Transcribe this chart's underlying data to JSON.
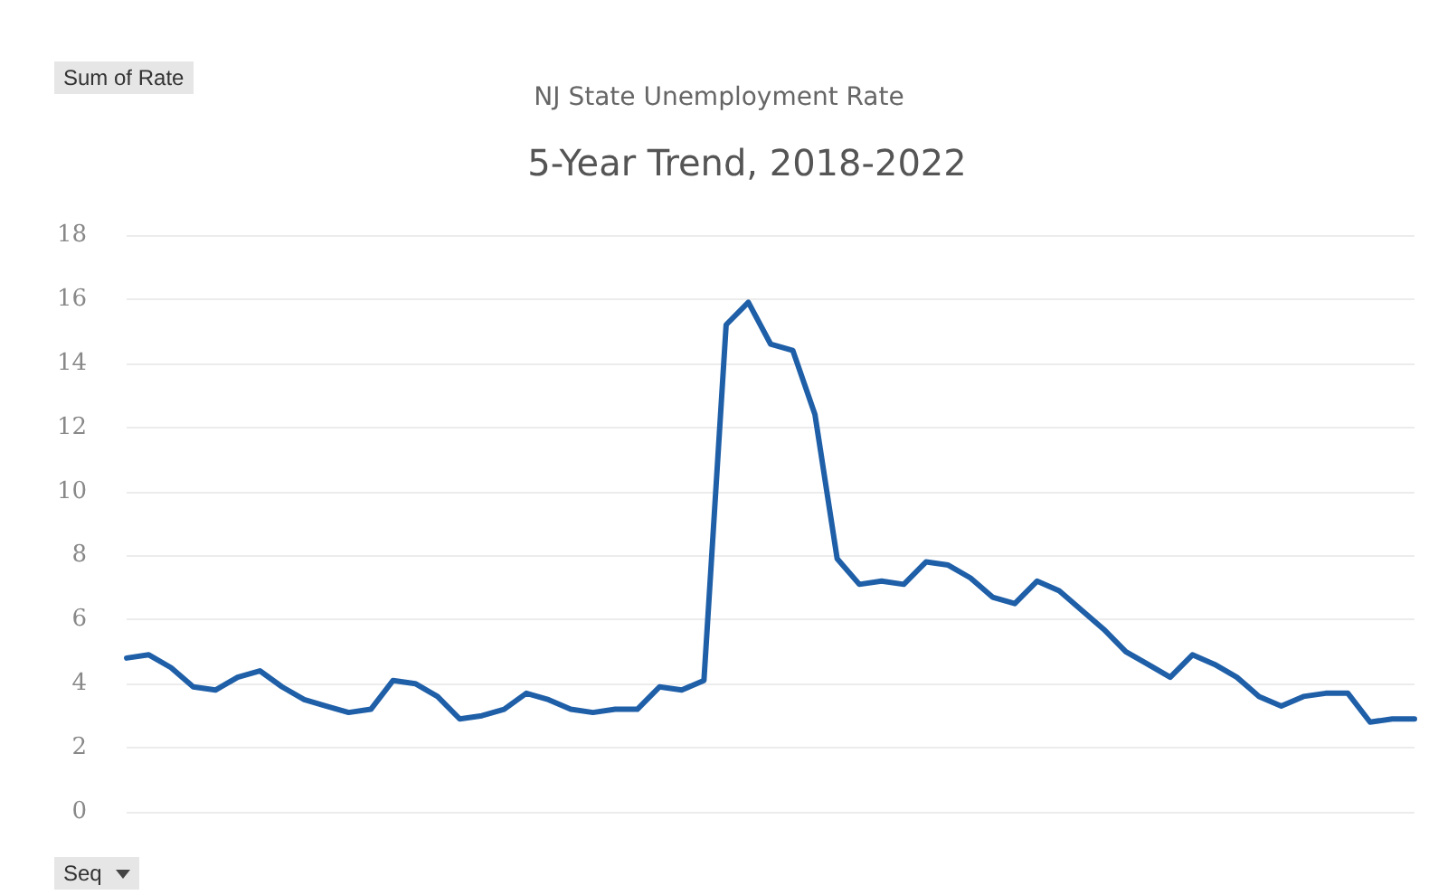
{
  "chart_data": {
    "type": "line",
    "title": "NJ State Unemployment Rate",
    "subtitle": "5-Year Trend, 2018-2022",
    "annotations": [
      "Sum of Rate",
      "Seq"
    ],
    "categories": [
      null,
      null,
      null,
      null,
      null,
      null,
      null,
      null,
      null,
      null,
      null,
      null,
      null,
      null,
      null,
      null,
      null,
      null,
      null,
      null,
      null,
      null,
      null,
      null,
      null,
      null,
      null,
      null,
      null,
      null,
      null,
      null,
      null,
      null,
      null,
      null,
      null,
      null,
      null,
      null,
      null,
      null,
      null,
      null,
      null,
      null,
      null,
      null,
      null,
      null,
      null,
      null,
      null,
      null,
      null,
      null,
      null,
      null,
      null
    ],
    "series": [
      {
        "color": "#1f5fa8",
        "values": [
          4.8,
          4.9,
          4.5,
          3.9,
          3.8,
          4.2,
          4.4,
          3.9,
          3.5,
          3.3,
          3.1,
          3.2,
          4.1,
          4.0,
          3.6,
          2.9,
          3.0,
          3.2,
          3.7,
          3.5,
          3.2,
          3.1,
          3.2,
          3.2,
          3.9,
          3.8,
          4.1,
          15.2,
          15.9,
          14.6,
          14.4,
          12.4,
          7.9,
          7.1,
          7.2,
          7.1,
          7.8,
          7.7,
          7.3,
          6.7,
          6.5,
          7.2,
          6.9,
          6.3,
          5.7,
          5.0,
          4.6,
          4.2,
          4.9,
          4.6,
          4.2,
          3.6,
          3.3,
          3.6,
          3.7,
          3.7,
          2.8,
          2.9,
          2.9
        ]
      }
    ],
    "ylim": [
      0,
      18
    ],
    "yticks": [
      0,
      2,
      4,
      6,
      8,
      10,
      12,
      14,
      16,
      18
    ],
    "grid": "y",
    "marker": "none",
    "line_style": "solid"
  }
}
